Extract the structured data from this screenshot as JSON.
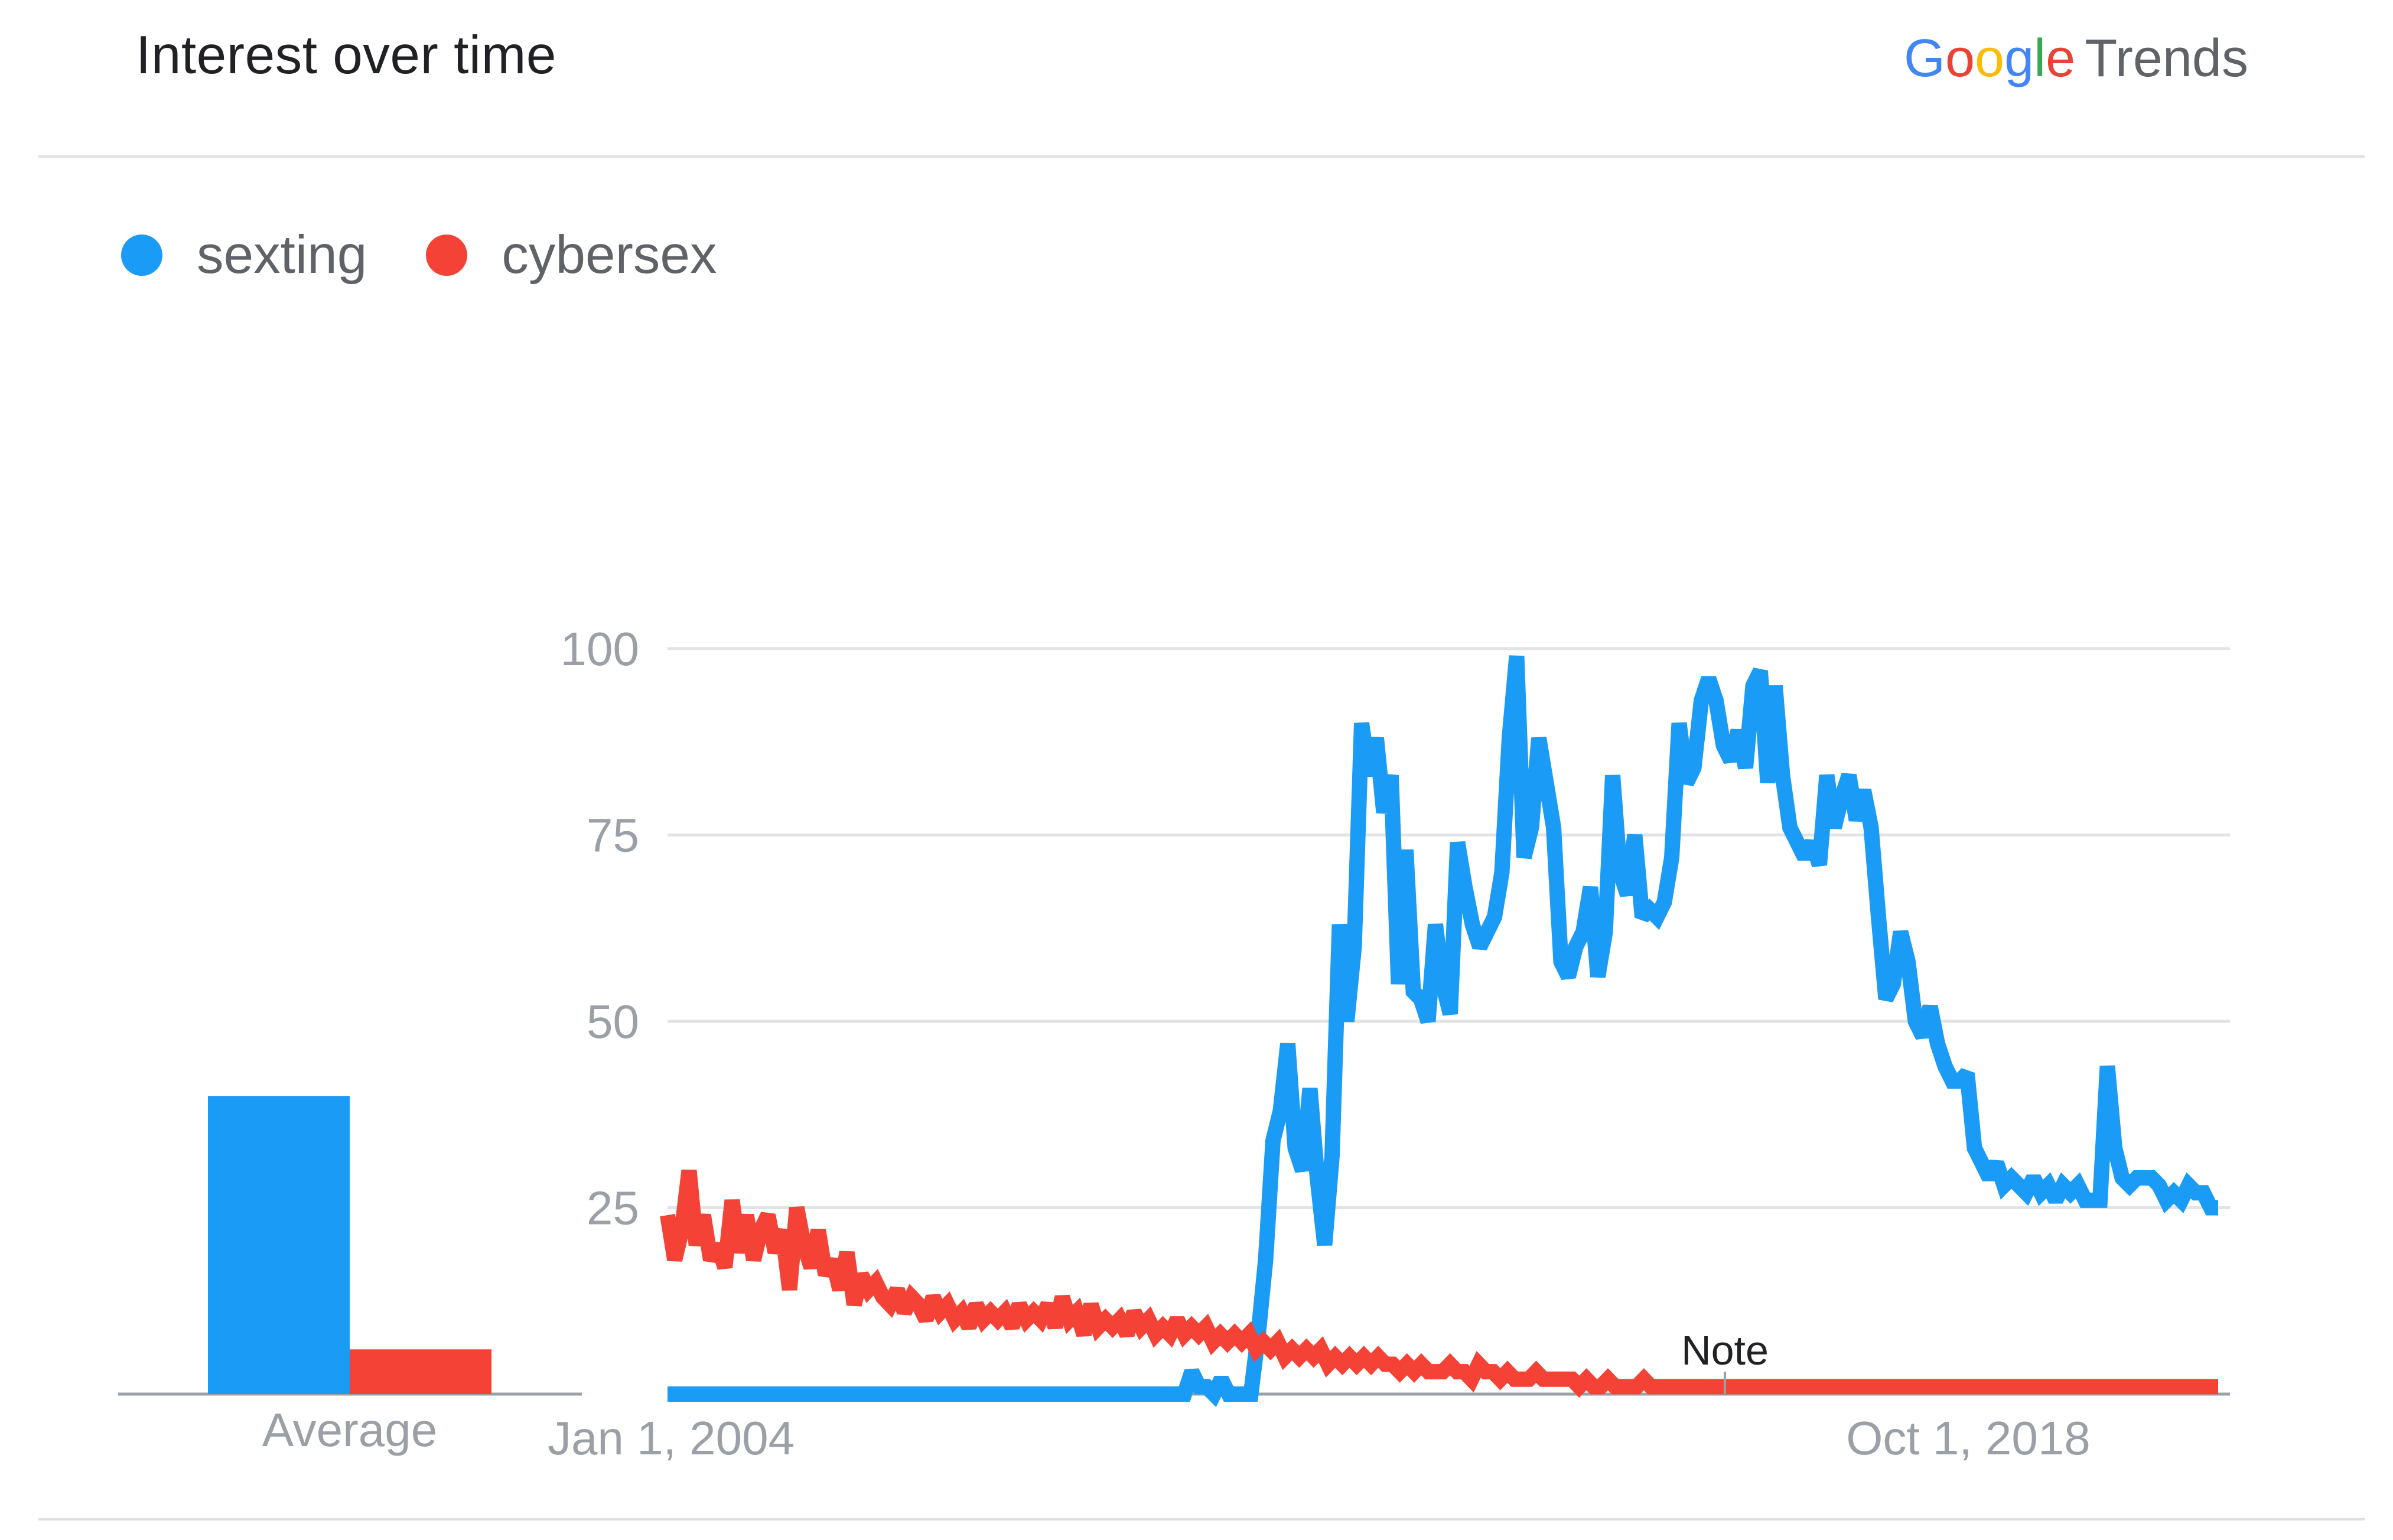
{
  "header": {
    "title": "Interest over time",
    "brand_google_letters": [
      {
        "char": "G",
        "color": "#4285F4"
      },
      {
        "char": "o",
        "color": "#EA4335"
      },
      {
        "char": "o",
        "color": "#FBBC05"
      },
      {
        "char": "g",
        "color": "#4285F4"
      },
      {
        "char": "l",
        "color": "#34A853"
      },
      {
        "char": "e",
        "color": "#EA4335"
      }
    ],
    "brand_suffix": "Trends"
  },
  "legend": [
    {
      "name": "sexting",
      "color": "#1A9BF5"
    },
    {
      "name": "cybersex",
      "color": "#F44336"
    }
  ],
  "chart_data": {
    "type": "line",
    "y_ticks": [
      25,
      50,
      75,
      100
    ],
    "ylim": [
      0,
      100
    ],
    "x_tick_labels": [
      "Jan 1, 2004",
      "Oct 1, 2018"
    ],
    "grid": true,
    "average": {
      "label": "Average",
      "values": [
        40,
        6
      ]
    },
    "annotation": "Note",
    "series": [
      {
        "name": "sexting",
        "color": "#1A9BF5",
        "values": [
          0,
          0,
          0,
          0,
          0,
          0,
          0,
          0,
          0,
          0,
          0,
          0,
          0,
          0,
          0,
          0,
          0,
          0,
          0,
          0,
          0,
          0,
          0,
          0,
          0,
          0,
          0,
          0,
          0,
          0,
          0,
          0,
          0,
          0,
          0,
          0,
          0,
          0,
          0,
          0,
          0,
          0,
          0,
          0,
          0,
          0,
          0,
          0,
          0,
          0,
          0,
          0,
          0,
          0,
          0,
          0,
          0,
          0,
          0,
          0,
          0,
          0,
          0,
          0,
          0,
          0,
          0,
          0,
          0,
          0,
          0,
          3,
          1,
          1,
          0,
          2,
          0,
          0,
          0,
          0,
          8,
          18,
          34,
          38,
          47,
          33,
          30,
          41,
          29,
          20,
          32,
          63,
          50,
          60,
          90,
          83,
          88,
          78,
          83,
          55,
          73,
          54,
          53,
          50,
          63,
          55,
          51,
          74,
          68,
          63,
          60,
          62,
          64,
          70,
          88,
          99,
          72,
          76,
          88,
          82,
          76,
          58,
          56,
          60,
          62,
          68,
          56,
          62,
          83,
          70,
          67,
          75,
          64,
          65,
          64,
          66,
          72,
          90,
          82,
          84,
          93,
          96,
          93,
          87,
          85,
          89,
          84,
          95,
          97,
          82,
          95,
          83,
          76,
          74,
          72,
          74,
          71,
          83,
          76,
          80,
          83,
          77,
          81,
          76,
          64,
          53,
          55,
          62,
          58,
          50,
          48,
          52,
          47,
          44,
          42,
          42,
          43,
          33,
          31,
          29,
          31,
          28,
          29,
          28,
          27,
          29,
          27,
          28,
          26,
          28,
          27,
          28,
          26,
          26,
          26,
          44,
          33,
          29,
          28,
          29,
          29,
          29,
          28,
          26,
          27,
          26,
          28,
          27,
          27,
          25,
          25
        ]
      },
      {
        "name": "cybersex",
        "color": "#F44336",
        "values": [
          24,
          18,
          22,
          30,
          20,
          24,
          18,
          20,
          17,
          26,
          19,
          24,
          18,
          22,
          24,
          19,
          22,
          14,
          25,
          20,
          17,
          22,
          16,
          18,
          14,
          19,
          12,
          16,
          14,
          15,
          13,
          12,
          14,
          11,
          13,
          12,
          10,
          13,
          11,
          12,
          10,
          11,
          9,
          12,
          10,
          11,
          10,
          11,
          9,
          12,
          10,
          11,
          10,
          12,
          9,
          13,
          10,
          11,
          8,
          12,
          9,
          10,
          9,
          10,
          8,
          11,
          9,
          10,
          8,
          9,
          8,
          10,
          8,
          9,
          8,
          9,
          7,
          8,
          7,
          8,
          7,
          8,
          6,
          7,
          6,
          7,
          5,
          6,
          5,
          6,
          5,
          6,
          4,
          5,
          4,
          5,
          4,
          5,
          4,
          5,
          4,
          4,
          3,
          4,
          3,
          4,
          3,
          3,
          3,
          4,
          3,
          3,
          2,
          4,
          3,
          3,
          2,
          3,
          2,
          2,
          2,
          3,
          2,
          2,
          2,
          2,
          2,
          1,
          2,
          1,
          1,
          2,
          1,
          1,
          1,
          1,
          2,
          1,
          1,
          1,
          1,
          1,
          1,
          1,
          1,
          1,
          1,
          1,
          1,
          1,
          1,
          1,
          1,
          1,
          1,
          1,
          1,
          1,
          1,
          1,
          1,
          1,
          1,
          1,
          1,
          1,
          1,
          1,
          1,
          1,
          1,
          1,
          1,
          1,
          1,
          1,
          1,
          1,
          1,
          1,
          1,
          1,
          1,
          1,
          1,
          1,
          1,
          1,
          1,
          1,
          1,
          1,
          1,
          1,
          1,
          1,
          1,
          1,
          1,
          1,
          1,
          1,
          1,
          1,
          1,
          1,
          1,
          1,
          1,
          1,
          1,
          1,
          1,
          1,
          1,
          1,
          1
        ]
      }
    ]
  }
}
